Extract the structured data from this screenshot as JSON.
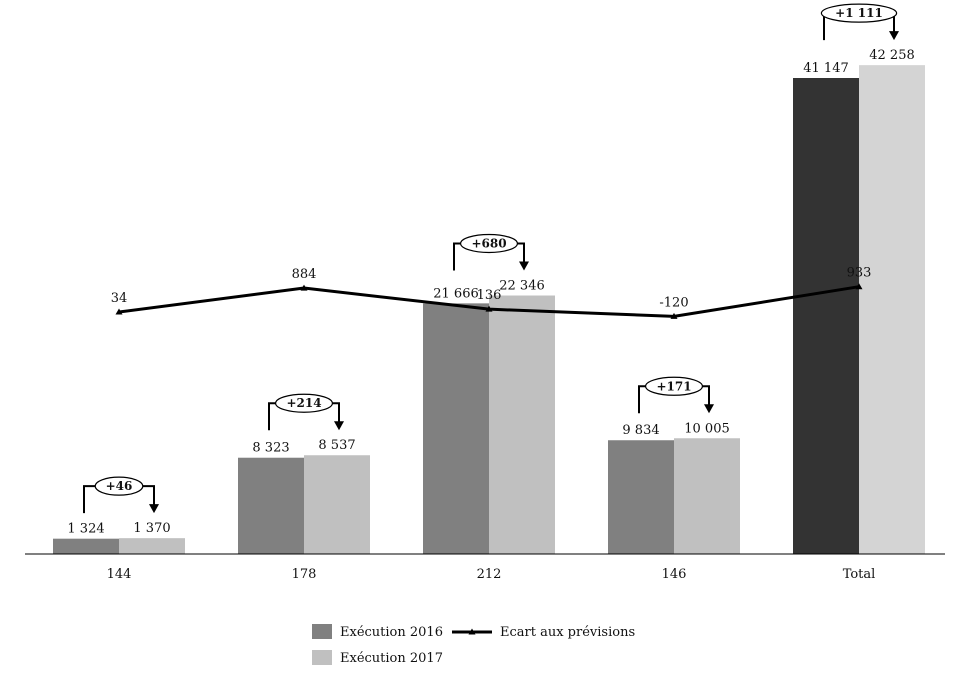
{
  "chart_data": {
    "type": "bar",
    "categories": [
      "144",
      "178",
      "212",
      "146",
      "Total"
    ],
    "series": [
      {
        "name": "Exécution 2016",
        "type": "bar",
        "values": [
          1324,
          8323,
          21666,
          9834,
          41147
        ],
        "labels": [
          "1 324",
          "8 323",
          "21 666",
          "9 834",
          "41 147"
        ]
      },
      {
        "name": "Exécution 2017",
        "type": "bar",
        "values": [
          1370,
          8537,
          22346,
          10005,
          42258
        ],
        "labels": [
          "1 370",
          "8 537",
          "22 346",
          "10 005",
          "42 258"
        ]
      },
      {
        "name": "Ecart aux prévisions",
        "type": "line",
        "values": [
          34,
          884,
          136,
          -120,
          933
        ],
        "labels": [
          "34",
          "884",
          "136",
          "-120",
          "933"
        ]
      }
    ],
    "differences": [
      "+46",
      "+214",
      "+680",
      "+171",
      "+1 111"
    ],
    "bar_ylim": [
      0,
      44000
    ],
    "line_ylim": [
      -3000,
      3000
    ],
    "colors": {
      "exec2016": "#808080",
      "exec2016_total": "#333333",
      "exec2017": "#c0c0c0",
      "exec2017_total": "#d4d4d4",
      "line": "#000000"
    },
    "legend": {
      "exec2016": "Exécution 2016",
      "exec2017": "Exécution 2017",
      "ecart": "Ecart aux prévisions"
    },
    "legend_position": "bottom-center",
    "title": "",
    "xlabel": "",
    "ylabel": ""
  }
}
